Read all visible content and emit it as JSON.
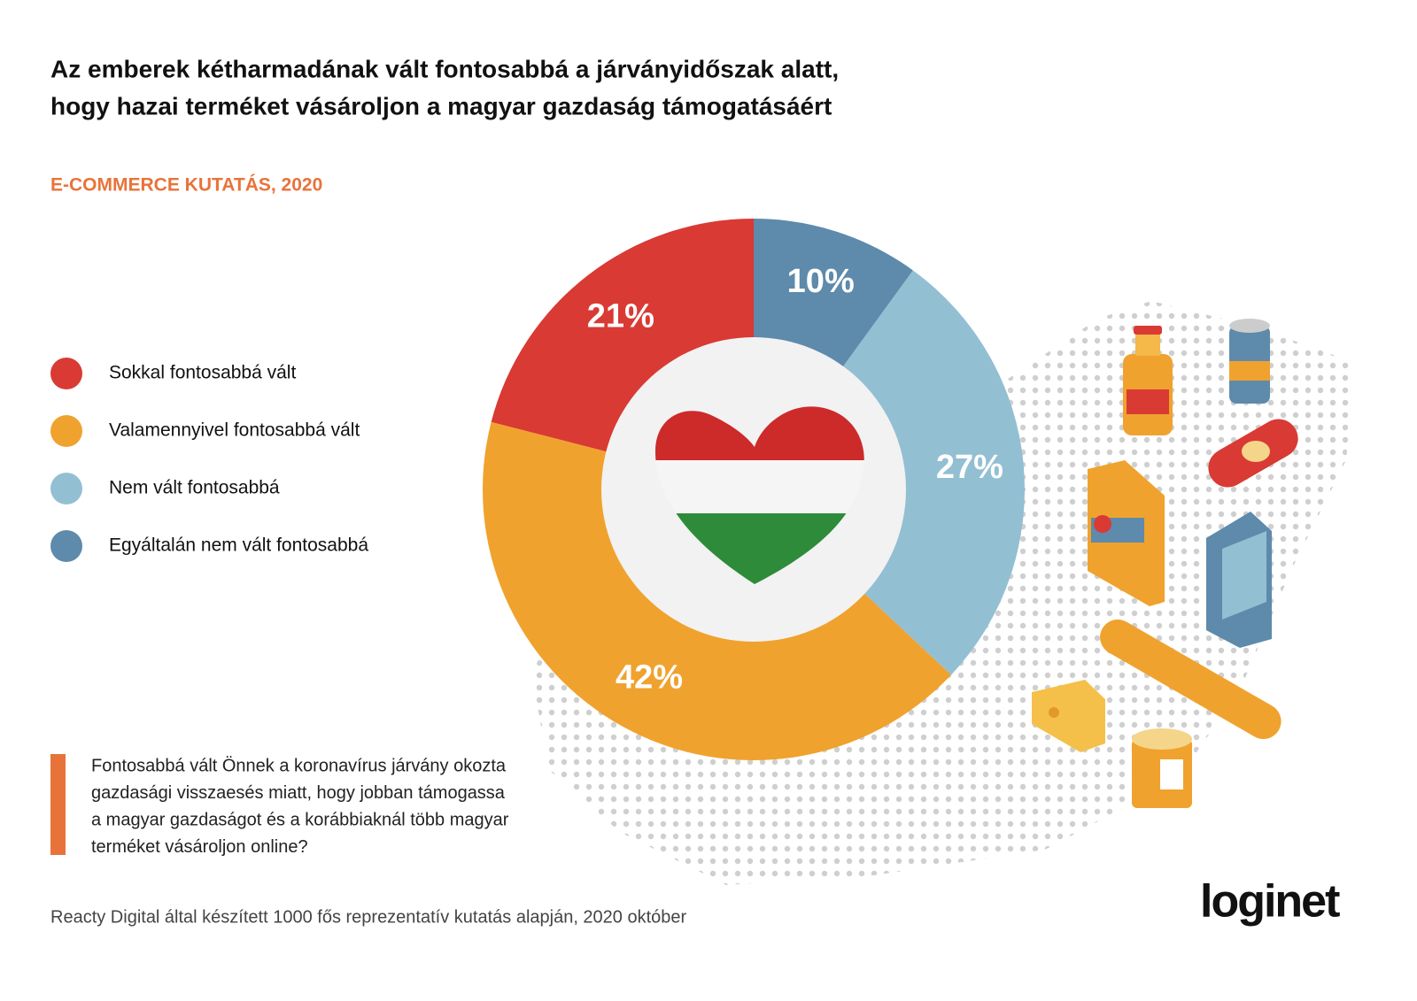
{
  "title": [
    "Az emberek kétharmadának vált fontosabbá a járványidőszak alatt,",
    "hogy hazai terméket vásároljon a magyar gazdaság támogatásáért"
  ],
  "subtitle": "E-COMMERCE KUTATÁS, 2020",
  "chart_data": {
    "type": "donut",
    "categories": [
      "Sokkal fontosabbá vált",
      "Valamennyivel fontosabbá vált",
      "Nem vált fontosabbá",
      "Egyáltalán nem vált fontosabbá"
    ],
    "values": [
      21,
      42,
      27,
      10
    ],
    "value_labels": [
      "21%",
      "42%",
      "27%",
      "10%"
    ],
    "colors": [
      "#d93a33",
      "#f0a22e",
      "#93bfd3",
      "#5e8aab"
    ]
  },
  "question": [
    "Fontosabbá vált Önnek a koronavírus járvány okozta",
    "gazdasági visszaesés miatt, hogy jobban támogassa",
    "a magyar gazdaságot és a korábbiaknál több magyar",
    "terméket vásároljon online?"
  ],
  "source": "Reacty Digital által készített 1000 fős reprezentatív kutatás alapján, 2020 október",
  "logo": "loginet"
}
